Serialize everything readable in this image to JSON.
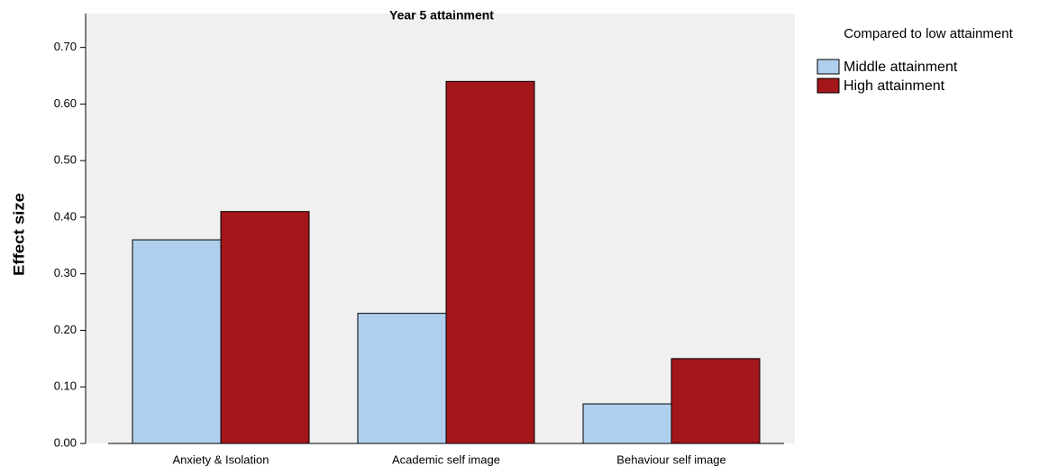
{
  "chart_data": {
    "type": "bar",
    "title": "Year 5 attainment",
    "y_label": "Effect size",
    "legend_title": "Compared to low attainment",
    "categories": [
      "Anxiety & Isolation",
      "Academic self image",
      "Behaviour self image"
    ],
    "series": [
      {
        "name": "Middle attainment",
        "color": "#b0cfee",
        "values": [
          0.36,
          0.23,
          0.07
        ]
      },
      {
        "name": "High attainment",
        "color": "#a3161a",
        "values": [
          0.41,
          0.64,
          0.15
        ]
      }
    ],
    "ylim": [
      0,
      0.76
    ],
    "yticks": [
      {
        "value": 0,
        "label": "0.00"
      },
      {
        "value": 0.1,
        "label": "0.10"
      },
      {
        "value": 0.2,
        "label": "0.20"
      },
      {
        "value": 0.3,
        "label": "0.30"
      },
      {
        "value": 0.4,
        "label": "0.40"
      },
      {
        "value": 0.5,
        "label": "0.50"
      },
      {
        "value": 0.6,
        "label": "0.60"
      },
      {
        "value": 0.7,
        "label": "0.70"
      }
    ]
  }
}
